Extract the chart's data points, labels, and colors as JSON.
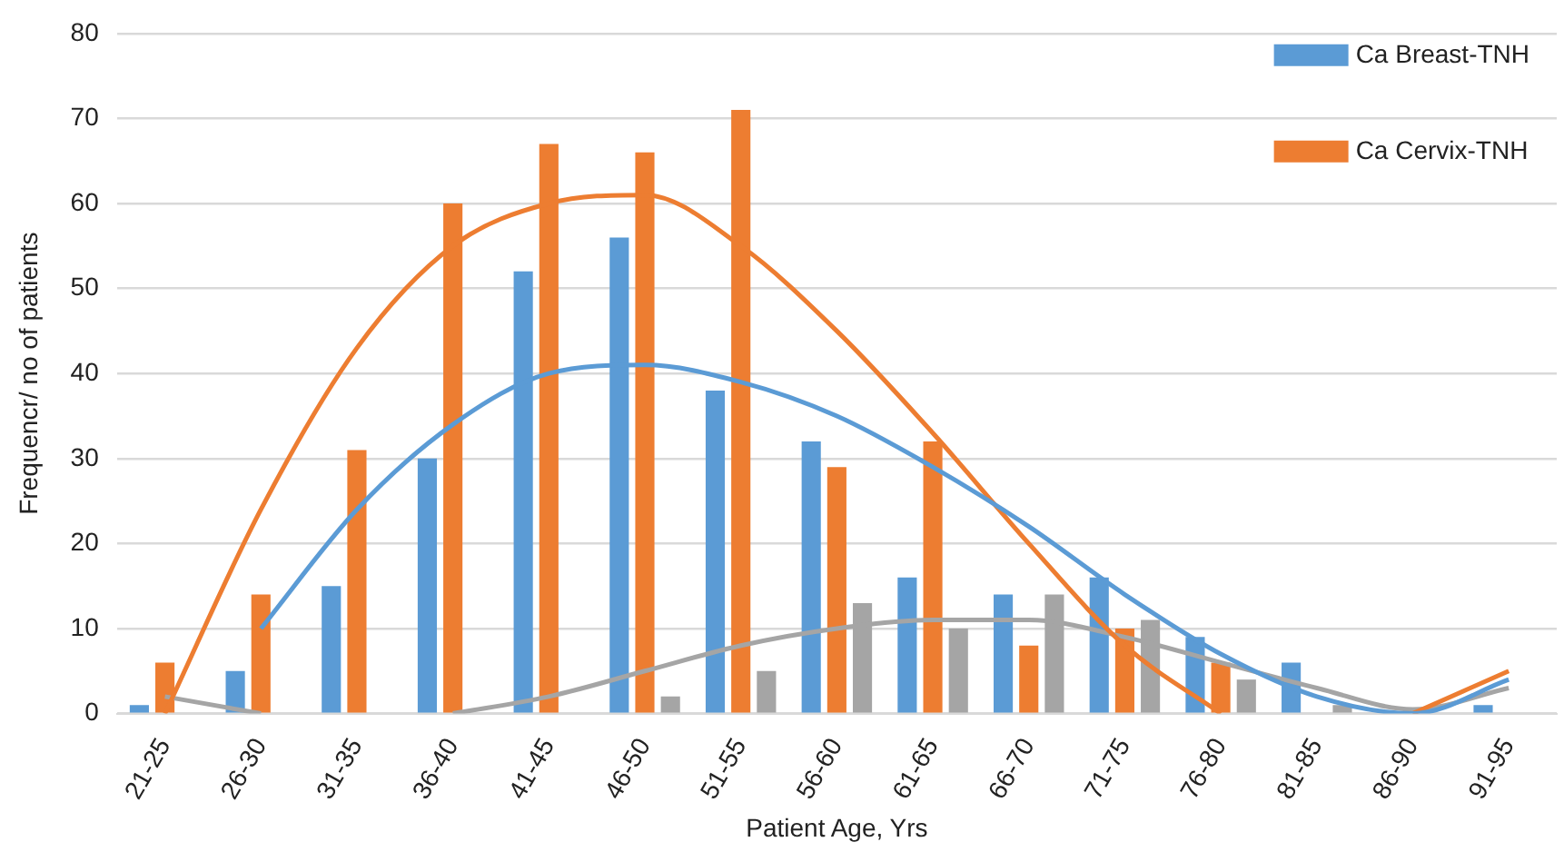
{
  "chart_data": {
    "type": "bar",
    "xlabel": "Patient Age, Yrs",
    "ylabel": "Frequencr/ no of patients",
    "categories": [
      "21-25",
      "26-30",
      "31-35",
      "36-40",
      "41-45",
      "46-50",
      "51-55",
      "56-60",
      "61-65",
      "66-70",
      "71-75",
      "76-80",
      "81-85",
      "86-90",
      "91-95"
    ],
    "series": [
      {
        "name": "Ca Breast-TNH",
        "color": "#5b9bd5",
        "values": [
          1,
          5,
          15,
          30,
          52,
          56,
          38,
          32,
          16,
          14,
          16,
          9,
          6,
          0,
          1
        ]
      },
      {
        "name": "Ca Cervix-TNH",
        "color": "#ed7d31",
        "values": [
          6,
          14,
          31,
          60,
          67,
          66,
          71,
          29,
          32,
          8,
          10,
          6,
          0,
          0,
          0
        ]
      },
      {
        "color": "#a5a5a5",
        "values": [
          0,
          0,
          0,
          0,
          0,
          2,
          5,
          13,
          10,
          14,
          11,
          4,
          1,
          0,
          0
        ]
      },
      {
        "type": "line",
        "color": "#5b9bd5",
        "values": [
          null,
          10,
          24,
          34,
          40,
          41,
          39,
          35,
          29,
          22,
          14,
          7,
          2,
          0,
          4
        ]
      },
      {
        "type": "line",
        "color": "#ed7d31",
        "values": [
          0,
          24,
          43,
          55,
          60,
          61,
          55,
          45,
          33,
          20,
          8,
          0,
          null,
          0,
          5
        ]
      },
      {
        "type": "line",
        "color": "#a5a5a5",
        "values": [
          2,
          0,
          null,
          0,
          2,
          5,
          8,
          10,
          11,
          11,
          9,
          6,
          3,
          0.5,
          3
        ]
      }
    ],
    "ylim": [
      0,
      80
    ],
    "yticks": [
      0,
      10,
      20,
      30,
      40,
      50,
      60,
      70,
      80
    ],
    "grid": "y",
    "legend": "top right"
  }
}
